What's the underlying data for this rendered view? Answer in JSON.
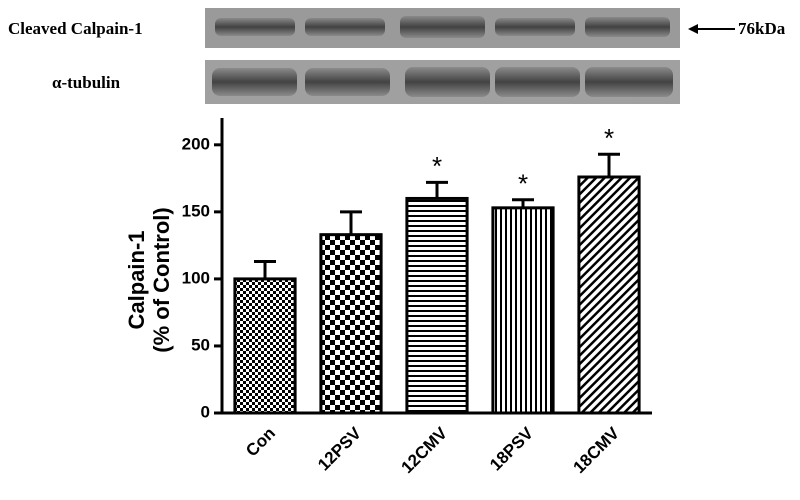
{
  "chart_data": {
    "type": "bar",
    "blot_labels": [
      "Cleaved Calpain-1",
      "α-tubulin"
    ],
    "blot_annotation": "76kDa",
    "y_label": [
      "Calpain-1",
      "(% of Control)"
    ],
    "categories": [
      "Con",
      "12PSV",
      "12CMV",
      "18PSV",
      "18CMV"
    ],
    "values": [
      100,
      133,
      160,
      153,
      176
    ],
    "errors": [
      13,
      17,
      12,
      6,
      17
    ],
    "significance": [
      null,
      null,
      "*",
      "*",
      "*"
    ],
    "color": "#000000",
    "ylim": [
      0,
      220
    ],
    "yticks": [
      0,
      50,
      100,
      150,
      200
    ],
    "grid": false
  }
}
